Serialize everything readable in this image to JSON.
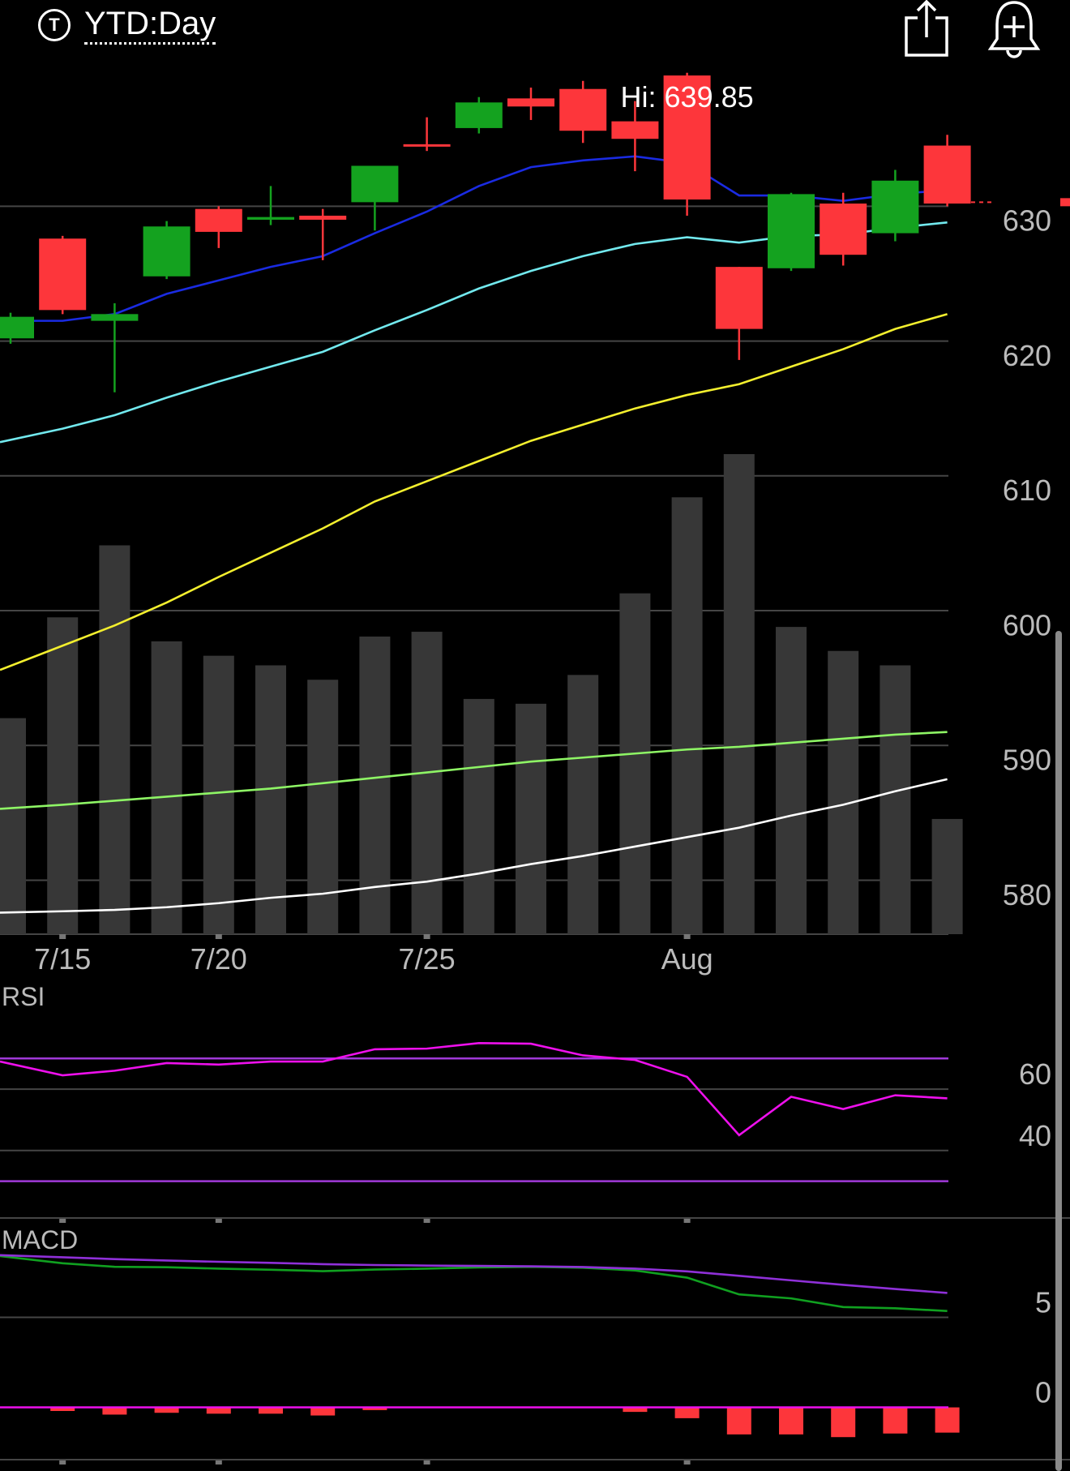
{
  "header": {
    "period_label": "YTD:Day",
    "period_icon": "timer-icon",
    "share_icon": "share-icon",
    "alert_icon": "add-alert-icon"
  },
  "chart_data": [
    {
      "type": "candlestick",
      "annotation": "Hi: 639.85",
      "x_ticks": [
        "7/15",
        "7/20",
        "7/25",
        "Aug"
      ],
      "x_tick_index": [
        1,
        4,
        8,
        13
      ],
      "y_ticks": [
        580,
        590,
        600,
        610,
        620,
        630
      ],
      "ylim": [
        576,
        645.3
      ],
      "last_price": 630.3,
      "colors": {
        "up": "#14a21f",
        "down": "#fd363b",
        "grid": "#454545",
        "volume": "#373737"
      },
      "candles": [
        {
          "open": 620.2,
          "close": 621.8,
          "high": 622.1,
          "low": 619.8
        },
        {
          "open": 627.6,
          "close": 622.3,
          "high": 627.8,
          "low": 622.0
        },
        {
          "open": 621.5,
          "close": 622.0,
          "high": 622.8,
          "low": 616.2
        },
        {
          "open": 624.8,
          "close": 628.5,
          "high": 628.9,
          "low": 624.6
        },
        {
          "open": 629.8,
          "close": 628.1,
          "high": 630.0,
          "low": 626.9
        },
        {
          "open": 629.0,
          "close": 629.2,
          "high": 631.5,
          "low": 628.6
        },
        {
          "open": 629.3,
          "close": 629.0,
          "high": 629.8,
          "low": 626.0
        },
        {
          "open": 630.3,
          "close": 633.0,
          "high": 633.0,
          "low": 628.2
        },
        {
          "open": 634.6,
          "close": 634.5,
          "high": 636.6,
          "low": 634.1
        },
        {
          "open": 635.8,
          "close": 637.7,
          "high": 638.1,
          "low": 635.4
        },
        {
          "open": 638.0,
          "close": 637.4,
          "high": 638.8,
          "low": 636.4
        },
        {
          "open": 638.7,
          "close": 635.6,
          "high": 639.3,
          "low": 634.7
        },
        {
          "open": 636.3,
          "close": 635.0,
          "high": 637.8,
          "low": 632.6
        },
        {
          "open": 639.7,
          "close": 630.5,
          "high": 639.9,
          "low": 629.3
        },
        {
          "open": 625.5,
          "close": 620.9,
          "high": 625.5,
          "low": 618.6
        },
        {
          "open": 625.4,
          "close": 630.9,
          "high": 631.0,
          "low": 625.2
        },
        {
          "open": 630.2,
          "close": 626.4,
          "high": 631.0,
          "low": 625.6
        },
        {
          "open": 628.0,
          "close": 631.9,
          "high": 632.7,
          "low": 627.4
        },
        {
          "open": 634.5,
          "close": 630.2,
          "high": 635.3,
          "low": 630.0
        }
      ],
      "volume_relative": [
        0.45,
        0.66,
        0.81,
        0.61,
        0.58,
        0.56,
        0.53,
        0.62,
        0.63,
        0.49,
        0.48,
        0.54,
        0.71,
        0.91,
        1.0,
        0.64,
        0.59,
        0.56,
        0.24
      ],
      "moving_averages": [
        {
          "color": "#1a2be2",
          "values": [
            621.5,
            621.5,
            622.0,
            623.5,
            624.5,
            625.5,
            626.3,
            628.0,
            629.6,
            631.5,
            632.9,
            633.4,
            633.7,
            633.2,
            630.8,
            630.8,
            630.4,
            630.9,
            631.2
          ]
        },
        {
          "color": "#72e9ee",
          "values": [
            612.5,
            613.5,
            614.5,
            615.8,
            617.0,
            618.1,
            619.2,
            620.8,
            622.3,
            623.9,
            625.2,
            626.3,
            627.2,
            627.7,
            627.3,
            627.8,
            627.9,
            628.4,
            628.8
          ]
        },
        {
          "color": "#f3ef2e",
          "values": [
            595.6,
            597.4,
            598.9,
            600.6,
            602.5,
            604.3,
            606.1,
            608.1,
            609.6,
            611.1,
            612.6,
            613.8,
            615.0,
            616.0,
            616.8,
            618.1,
            619.4,
            620.9,
            622.0
          ]
        },
        {
          "color": "#8ef565",
          "values": [
            585.3,
            585.6,
            585.9,
            586.2,
            586.5,
            586.8,
            587.2,
            587.6,
            588.0,
            588.4,
            588.8,
            589.1,
            589.4,
            589.7,
            589.9,
            590.2,
            590.5,
            590.8,
            591.0
          ]
        },
        {
          "color": "#ffffff",
          "values": [
            577.6,
            577.7,
            577.8,
            578.0,
            578.3,
            578.7,
            579.0,
            579.5,
            579.9,
            580.5,
            581.2,
            581.8,
            582.5,
            583.2,
            583.9,
            584.8,
            585.6,
            586.6,
            587.5
          ]
        }
      ]
    },
    {
      "type": "line",
      "title": "RSI",
      "y_ticks": [
        40,
        60
      ],
      "ylim": [
        18,
        92
      ],
      "reference_lines": [
        {
          "value": 70,
          "color": "#a039d8"
        },
        {
          "value": 30,
          "color": "#a039d8"
        }
      ],
      "series": [
        {
          "color": "#ee10ec",
          "values": [
            69,
            64.5,
            66,
            68.5,
            68,
            69,
            69,
            73,
            73.2,
            75,
            74.8,
            71,
            69.5,
            64,
            45,
            57.5,
            53.5,
            58,
            57
          ]
        }
      ]
    },
    {
      "type": "line",
      "title": "MACD",
      "y_ticks": [
        0,
        5
      ],
      "ylim": [
        -2.9,
        9.7
      ],
      "series": [
        {
          "color": "#10a020",
          "values": [
            8.4,
            8.0,
            7.8,
            7.78,
            7.7,
            7.64,
            7.56,
            7.65,
            7.7,
            7.77,
            7.8,
            7.75,
            7.6,
            7.2,
            6.27,
            6.05,
            5.57,
            5.5,
            5.35
          ]
        },
        {
          "color": "#8f30d8",
          "values": [
            8.45,
            8.33,
            8.23,
            8.15,
            8.08,
            8.02,
            7.95,
            7.9,
            7.87,
            7.85,
            7.83,
            7.79,
            7.7,
            7.55,
            7.3,
            7.05,
            6.8,
            6.57,
            6.35
          ]
        }
      ],
      "histogram": [
        0,
        -0.2,
        -0.4,
        -0.3,
        -0.35,
        -0.35,
        -0.45,
        -0.15,
        0,
        0,
        0,
        0,
        -0.25,
        -0.6,
        -1.5,
        -1.5,
        -1.65,
        -1.45,
        -1.4
      ],
      "zero_line_color": "#ee10ec"
    }
  ]
}
